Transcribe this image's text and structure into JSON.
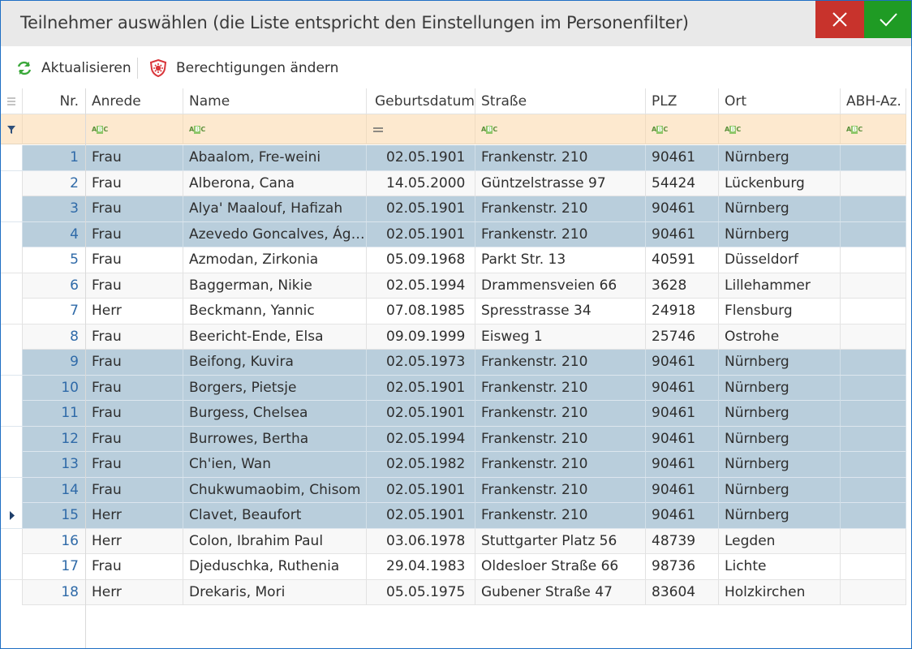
{
  "title": "Teilnehmer auswählen (die Liste entspricht den Einstellungen im Personenfilter)",
  "window_buttons": {
    "close_icon": "close-icon",
    "confirm_icon": "checkmark-icon"
  },
  "colors": {
    "close": "#c8332c",
    "confirm": "#1f9b24",
    "selected_row": "#b9cedc",
    "filter_row": "#fde9cf",
    "accent": "#2f6aa8"
  },
  "toolbar": {
    "refresh_label": "Aktualisieren",
    "permissions_label": "Berechtigungen ändern"
  },
  "columns": {
    "nr": "Nr.",
    "anrede": "Anrede",
    "name": "Name",
    "geburtsdatum": "Geburtsdatum",
    "strasse": "Straße",
    "plz": "PLZ",
    "ort": "Ort",
    "abh": "ABH-Az."
  },
  "filter_icons": {
    "text": "abc-filter-icon",
    "equals": "equals-filter-icon"
  },
  "rows": [
    {
      "nr": "1",
      "anrede": "Frau",
      "name": "Abaalom, Fre-weini",
      "geburtsdatum": "02.05.1901",
      "strasse": "Frankenstr. 210",
      "plz": "90461",
      "ort": "Nürnberg",
      "abh": "",
      "selected": true
    },
    {
      "nr": "2",
      "anrede": "Frau",
      "name": "Alberona, Cana",
      "geburtsdatum": "14.05.2000",
      "strasse": "Güntzelstrasse 97",
      "plz": "54424",
      "ort": "Lückenburg",
      "abh": "",
      "selected": false
    },
    {
      "nr": "3",
      "anrede": "Frau",
      "name": "Alya' Maalouf, Hafizah",
      "geburtsdatum": "02.05.1901",
      "strasse": "Frankenstr. 210",
      "plz": "90461",
      "ort": "Nürnberg",
      "abh": "",
      "selected": true
    },
    {
      "nr": "4",
      "anrede": "Frau",
      "name": "Azevedo Goncalves, Ága...",
      "geburtsdatum": "02.05.1901",
      "strasse": "Frankenstr. 210",
      "plz": "90461",
      "ort": "Nürnberg",
      "abh": "",
      "selected": true
    },
    {
      "nr": "5",
      "anrede": "Frau",
      "name": "Azmodan, Zirkonia",
      "geburtsdatum": "05.09.1968",
      "strasse": "Parkt Str. 13",
      "plz": "40591",
      "ort": "Düsseldorf",
      "abh": "",
      "selected": false
    },
    {
      "nr": "6",
      "anrede": "Frau",
      "name": "Baggerman, Nikie",
      "geburtsdatum": "02.05.1994",
      "strasse": "Drammensveien 66",
      "plz": "3628",
      "ort": "Lillehammer",
      "abh": "",
      "selected": false
    },
    {
      "nr": "7",
      "anrede": "Herr",
      "name": "Beckmann, Yannic",
      "geburtsdatum": "07.08.1985",
      "strasse": "Spresstrasse 34",
      "plz": "24918",
      "ort": "Flensburg",
      "abh": "",
      "selected": false
    },
    {
      "nr": "8",
      "anrede": "Frau",
      "name": "Beericht-Ende, Elsa",
      "geburtsdatum": "09.09.1999",
      "strasse": "Eisweg 1",
      "plz": "25746",
      "ort": "Ostrohe",
      "abh": "",
      "selected": false
    },
    {
      "nr": "9",
      "anrede": "Frau",
      "name": "Beifong, Kuvira",
      "geburtsdatum": "02.05.1973",
      "strasse": "Frankenstr. 210",
      "plz": "90461",
      "ort": "Nürnberg",
      "abh": "",
      "selected": true
    },
    {
      "nr": "10",
      "anrede": "Frau",
      "name": "Borgers, Pietsje",
      "geburtsdatum": "02.05.1901",
      "strasse": "Frankenstr. 210",
      "plz": "90461",
      "ort": "Nürnberg",
      "abh": "",
      "selected": true
    },
    {
      "nr": "11",
      "anrede": "Frau",
      "name": "Burgess, Chelsea",
      "geburtsdatum": "02.05.1901",
      "strasse": "Frankenstr. 210",
      "plz": "90461",
      "ort": "Nürnberg",
      "abh": "",
      "selected": true
    },
    {
      "nr": "12",
      "anrede": "Frau",
      "name": "Burrowes, Bertha",
      "geburtsdatum": "02.05.1994",
      "strasse": "Frankenstr. 210",
      "plz": "90461",
      "ort": "Nürnberg",
      "abh": "",
      "selected": true
    },
    {
      "nr": "13",
      "anrede": "Frau",
      "name": "Ch'ien, Wan",
      "geburtsdatum": "02.05.1982",
      "strasse": "Frankenstr. 210",
      "plz": "90461",
      "ort": "Nürnberg",
      "abh": "",
      "selected": true
    },
    {
      "nr": "14",
      "anrede": "Frau",
      "name": "Chukwumaobim, Chisom",
      "geburtsdatum": "02.05.1901",
      "strasse": "Frankenstr. 210",
      "plz": "90461",
      "ort": "Nürnberg",
      "abh": "",
      "selected": true
    },
    {
      "nr": "15",
      "anrede": "Herr",
      "name": "Clavet, Beaufort",
      "geburtsdatum": "02.05.1901",
      "strasse": "Frankenstr. 210",
      "plz": "90461",
      "ort": "Nürnberg",
      "abh": "",
      "selected": true,
      "current": true
    },
    {
      "nr": "16",
      "anrede": "Herr",
      "name": "Colon, Ibrahim Paul",
      "geburtsdatum": "03.06.1978",
      "strasse": "Stuttgarter Platz 56",
      "plz": "48739",
      "ort": "Legden",
      "abh": "",
      "selected": false
    },
    {
      "nr": "17",
      "anrede": "Frau",
      "name": "Djeduschka, Ruthenia",
      "geburtsdatum": "29.04.1983",
      "strasse": "Oldesloer Straße 66",
      "plz": "98736",
      "ort": "Lichte",
      "abh": "",
      "selected": false
    },
    {
      "nr": "18",
      "anrede": "Herr",
      "name": "Drekaris, Mori",
      "geburtsdatum": "05.05.1975",
      "strasse": "Gubener Straße 47",
      "plz": "83604",
      "ort": "Holzkirchen",
      "abh": "",
      "selected": false
    }
  ]
}
